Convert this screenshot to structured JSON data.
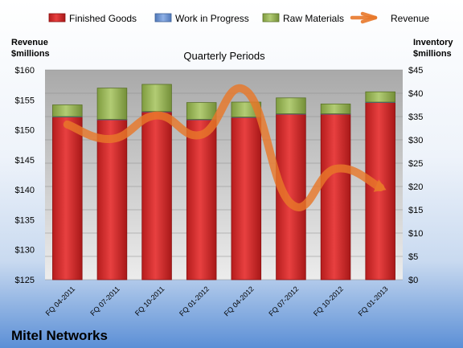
{
  "chart_data": {
    "type": "bar",
    "subtitle": "Quarterly Periods",
    "company": "Mitel Networks",
    "left_axis": {
      "title_line1": "Revenue",
      "title_line2": "$millions",
      "min": 125,
      "max": 160,
      "step": 5,
      "prefix": "$"
    },
    "right_axis": {
      "title_line1": "Inventory",
      "title_line2": "$millions",
      "min": 0,
      "max": 45,
      "step": 5,
      "prefix": "$"
    },
    "categories": [
      "FQ 04-2011",
      "FQ 07-2011",
      "FQ 10-2011",
      "FQ 01-2012",
      "FQ 04-2012",
      "FQ 07-2012",
      "FQ 10-2012",
      "FQ 01-2013"
    ],
    "series": [
      {
        "name": "Finished Goods",
        "axis": "right",
        "kind": "stacked-bar",
        "color": "#d42a2a",
        "values": [
          34.9,
          34.3,
          36.0,
          34.3,
          34.8,
          35.5,
          35.5,
          38.0
        ]
      },
      {
        "name": "Work in Progress",
        "axis": "right",
        "kind": "stacked-bar",
        "color": "#6f95d3",
        "values": [
          0.1,
          0.1,
          0.1,
          0.1,
          0.1,
          0.1,
          0.1,
          0.1
        ]
      },
      {
        "name": "Raw Materials",
        "axis": "right",
        "kind": "stacked-bar",
        "color": "#9cba5a",
        "values": [
          2.5,
          6.7,
          5.8,
          3.6,
          3.2,
          3.4,
          2.1,
          2.2
        ]
      },
      {
        "name": "Revenue",
        "axis": "left",
        "kind": "line",
        "color": "#e8782a",
        "values": [
          150.9,
          148.5,
          152.4,
          149.2,
          156.5,
          137.7,
          143.5,
          140.4
        ]
      }
    ],
    "grid": true,
    "legend": "top"
  }
}
